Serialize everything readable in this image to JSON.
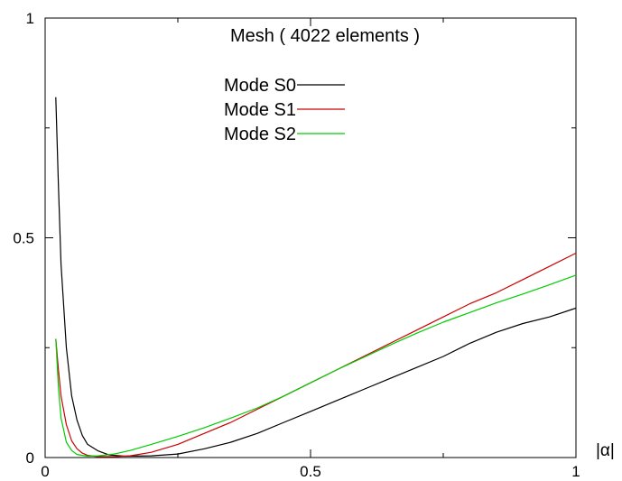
{
  "chart_data": {
    "type": "line",
    "title": "Mesh ( 4022 elements )",
    "xlabel": "|α|",
    "ylabel": "",
    "xlim": [
      0,
      1
    ],
    "ylim": [
      0,
      1
    ],
    "x_ticks": [
      "0",
      "0.5",
      "1"
    ],
    "y_ticks": [
      "0",
      "0.5",
      "1"
    ],
    "grid": false,
    "legend_position": "top-center",
    "series": [
      {
        "name": "Mode S0",
        "color": "#000000",
        "points": [
          [
            0.02,
            0.82
          ],
          [
            0.025,
            0.62
          ],
          [
            0.03,
            0.44
          ],
          [
            0.04,
            0.25
          ],
          [
            0.05,
            0.14
          ],
          [
            0.06,
            0.085
          ],
          [
            0.07,
            0.05
          ],
          [
            0.08,
            0.03
          ],
          [
            0.1,
            0.015
          ],
          [
            0.12,
            0.006
          ],
          [
            0.15,
            0.003
          ],
          [
            0.2,
            0.004
          ],
          [
            0.25,
            0.008
          ],
          [
            0.3,
            0.02
          ],
          [
            0.35,
            0.035
          ],
          [
            0.4,
            0.055
          ],
          [
            0.45,
            0.08
          ],
          [
            0.5,
            0.105
          ],
          [
            0.55,
            0.13
          ],
          [
            0.6,
            0.155
          ],
          [
            0.65,
            0.18
          ],
          [
            0.7,
            0.205
          ],
          [
            0.75,
            0.23
          ],
          [
            0.8,
            0.26
          ],
          [
            0.85,
            0.285
          ],
          [
            0.9,
            0.305
          ],
          [
            0.95,
            0.32
          ],
          [
            1.0,
            0.34
          ]
        ]
      },
      {
        "name": "Mode S1",
        "color": "#cc0000",
        "points": [
          [
            0.02,
            0.27
          ],
          [
            0.025,
            0.2
          ],
          [
            0.03,
            0.14
          ],
          [
            0.04,
            0.075
          ],
          [
            0.05,
            0.038
          ],
          [
            0.06,
            0.02
          ],
          [
            0.07,
            0.01
          ],
          [
            0.08,
            0.005
          ],
          [
            0.1,
            0.002
          ],
          [
            0.13,
            0.002
          ],
          [
            0.16,
            0.004
          ],
          [
            0.2,
            0.012
          ],
          [
            0.25,
            0.03
          ],
          [
            0.3,
            0.055
          ],
          [
            0.35,
            0.08
          ],
          [
            0.4,
            0.11
          ],
          [
            0.45,
            0.14
          ],
          [
            0.5,
            0.17
          ],
          [
            0.55,
            0.2
          ],
          [
            0.6,
            0.23
          ],
          [
            0.65,
            0.26
          ],
          [
            0.7,
            0.29
          ],
          [
            0.75,
            0.32
          ],
          [
            0.8,
            0.35
          ],
          [
            0.85,
            0.375
          ],
          [
            0.9,
            0.405
          ],
          [
            0.95,
            0.435
          ],
          [
            1.0,
            0.465
          ]
        ]
      },
      {
        "name": "Mode S2",
        "color": "#00cc00",
        "points": [
          [
            0.02,
            0.27
          ],
          [
            0.025,
            0.16
          ],
          [
            0.03,
            0.09
          ],
          [
            0.04,
            0.035
          ],
          [
            0.05,
            0.016
          ],
          [
            0.06,
            0.007
          ],
          [
            0.08,
            0.003
          ],
          [
            0.1,
            0.004
          ],
          [
            0.13,
            0.008
          ],
          [
            0.16,
            0.016
          ],
          [
            0.2,
            0.03
          ],
          [
            0.25,
            0.048
          ],
          [
            0.3,
            0.068
          ],
          [
            0.35,
            0.09
          ],
          [
            0.4,
            0.113
          ],
          [
            0.45,
            0.14
          ],
          [
            0.5,
            0.17
          ],
          [
            0.55,
            0.2
          ],
          [
            0.6,
            0.228
          ],
          [
            0.65,
            0.256
          ],
          [
            0.7,
            0.283
          ],
          [
            0.75,
            0.308
          ],
          [
            0.8,
            0.33
          ],
          [
            0.85,
            0.352
          ],
          [
            0.9,
            0.372
          ],
          [
            0.95,
            0.393
          ],
          [
            1.0,
            0.415
          ]
        ]
      }
    ]
  }
}
